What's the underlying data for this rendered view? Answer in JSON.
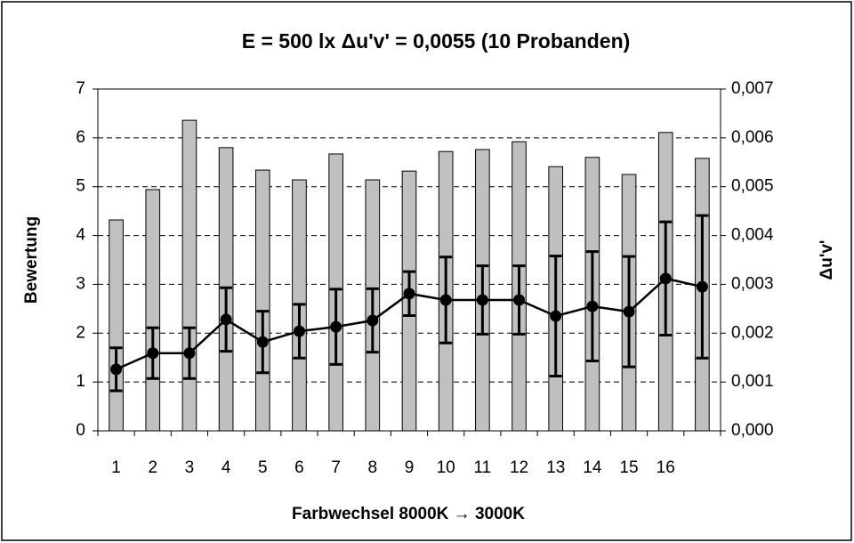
{
  "chart_data": {
    "type": "bar",
    "title": "E = 500 lx Δu'v' = 0,0055 (10 Probanden)",
    "x_label": "Farbwechsel 8000K → 3000K",
    "y_label": "Bewertung",
    "y2_label": "Δu'v'",
    "categories": [
      "1",
      "2",
      "3",
      "4",
      "5",
      "6",
      "7",
      "8",
      "9",
      "10",
      "11",
      "12",
      "13",
      "14",
      "15",
      "16",
      null
    ],
    "ylim": [
      0,
      7
    ],
    "yticks": [
      0,
      1,
      2,
      3,
      4,
      5,
      6,
      7
    ],
    "y2lim": [
      0,
      0.007
    ],
    "y2ticks": [
      {
        "value": 0,
        "label": "0,000"
      },
      {
        "value": 0.001,
        "label": "0,001"
      },
      {
        "value": 0.002,
        "label": "0,002"
      },
      {
        "value": 0.003,
        "label": "0,003"
      },
      {
        "value": 0.004,
        "label": "0,004"
      },
      {
        "value": 0.005,
        "label": "0,005"
      },
      {
        "value": 0.006,
        "label": "0,006"
      },
      {
        "value": 0.007,
        "label": "0,007"
      }
    ],
    "grid": true,
    "series": [
      {
        "type": "bar",
        "axis": "y2",
        "color": "#c0c0c0",
        "values": [
          0.00432,
          0.00494,
          0.00636,
          0.0058,
          0.00534,
          0.00514,
          0.00567,
          0.00514,
          0.00532,
          0.00572,
          0.00576,
          0.00592,
          0.00541,
          0.0056,
          0.00525,
          0.00611,
          0.00558
        ]
      },
      {
        "type": "line",
        "color": "#000000",
        "values": [
          1.26,
          1.59,
          1.59,
          2.28,
          1.82,
          2.04,
          2.13,
          2.26,
          2.81,
          2.68,
          2.68,
          2.68,
          2.35,
          2.55,
          2.44,
          3.12,
          2.95
        ],
        "errors": [
          0.44,
          0.52,
          0.52,
          0.65,
          0.63,
          0.55,
          0.77,
          0.65,
          0.45,
          0.88,
          0.7,
          0.7,
          1.23,
          1.12,
          1.13,
          1.16,
          1.46
        ]
      }
    ]
  }
}
